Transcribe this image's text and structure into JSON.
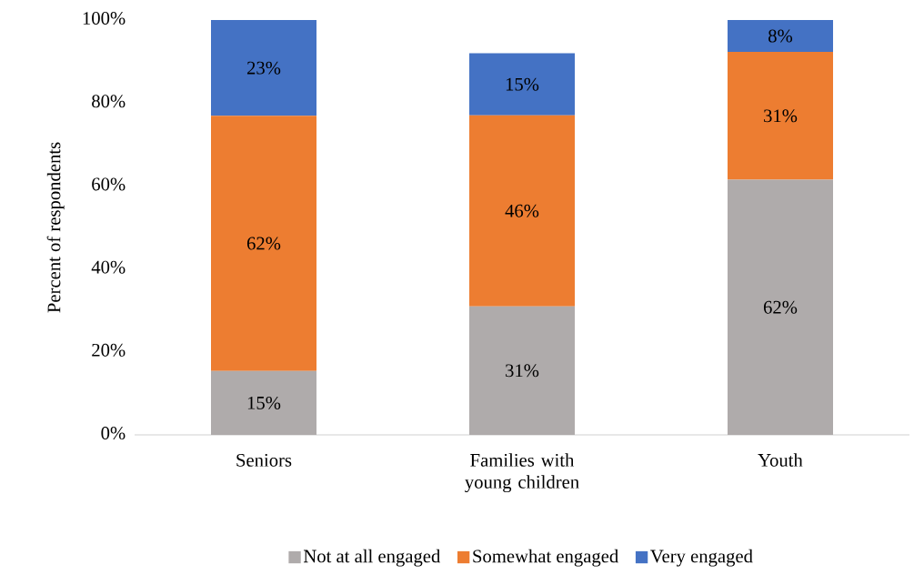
{
  "chart_data": {
    "type": "bar",
    "stacked": true,
    "ylabel": "Percent of respondents",
    "categories": [
      "Seniors",
      "Families with young children",
      "Youth"
    ],
    "series": [
      {
        "name": "Not at all engaged",
        "color": "#afabab",
        "values": [
          15.4,
          31,
          61.5
        ],
        "value_labels": [
          "15%",
          "31%",
          "62%"
        ]
      },
      {
        "name": "Somewhat engaged",
        "color": "#ed7d31",
        "values": [
          61.5,
          46,
          30.8
        ],
        "value_labels": [
          "62%",
          "46%",
          "31%"
        ]
      },
      {
        "name": "Very engaged",
        "color": "#4472c4",
        "values": [
          23.1,
          15,
          7.7
        ],
        "value_labels": [
          "23%",
          "15%",
          "8%"
        ]
      }
    ],
    "ylim": [
      0,
      100
    ],
    "yticks": [
      {
        "value": 0,
        "label": "0%"
      },
      {
        "value": 20,
        "label": "20%"
      },
      {
        "value": 40,
        "label": "40%"
      },
      {
        "value": 60,
        "label": "60%"
      },
      {
        "value": 80,
        "label": "80%"
      },
      {
        "value": 100,
        "label": "100%"
      }
    ],
    "legend": "bottom"
  }
}
